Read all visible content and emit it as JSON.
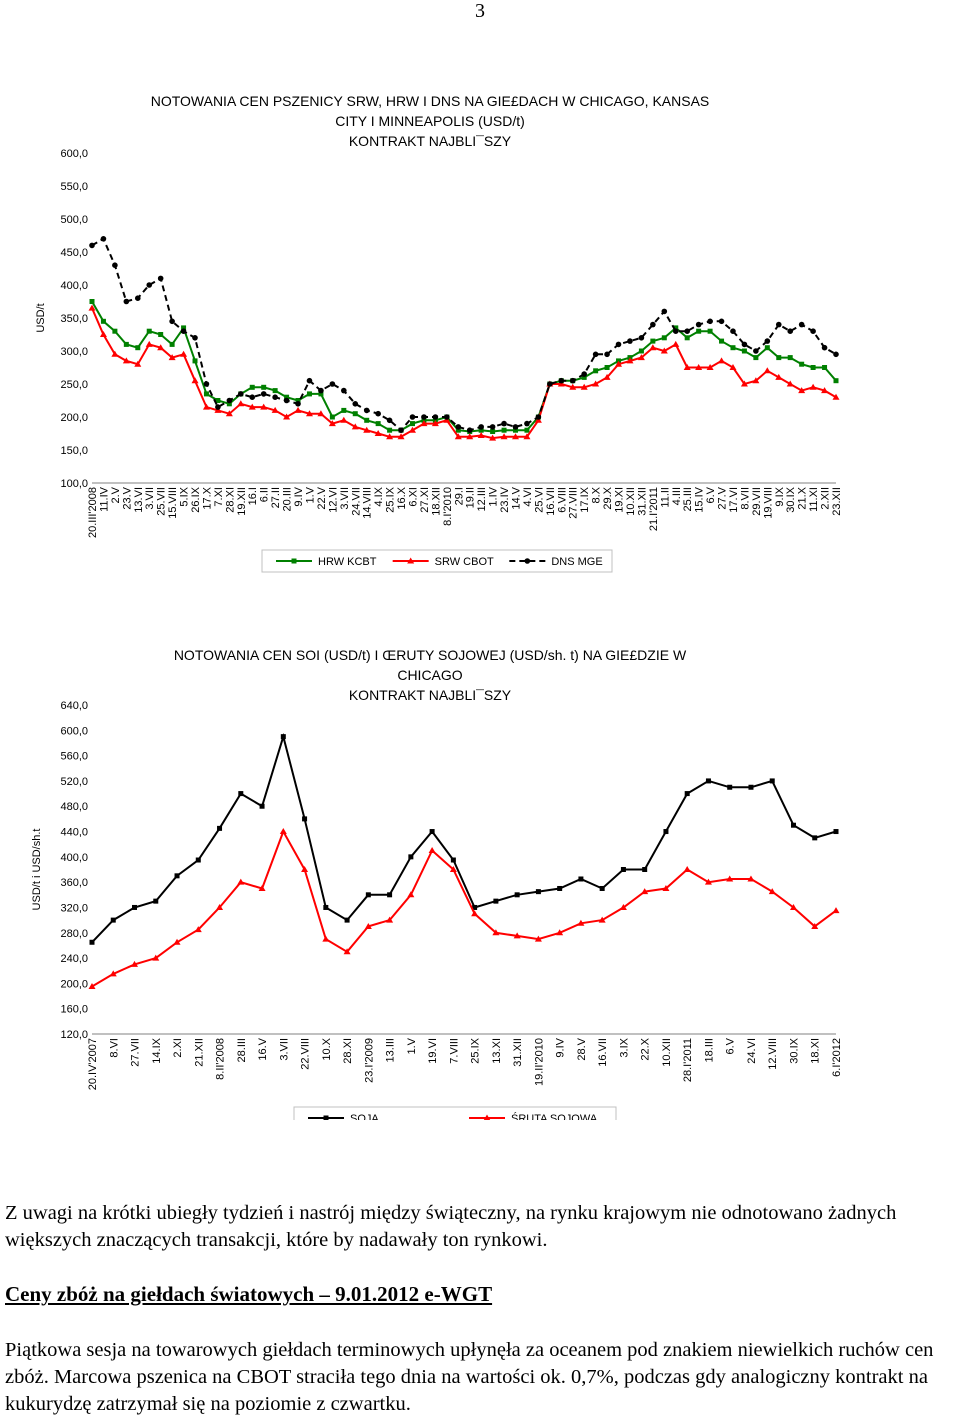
{
  "page": {
    "number": "3"
  },
  "chart_data": [
    {
      "type": "line",
      "title_lines": [
        "NOTOWANIA CEN PSZENICY SRW, HRW I DNS NA GIE£DACH W CHICAGO, KANSAS",
        "CITY I MINNEAPOLIS (USD/t)",
        "KONTRAKT NAJBLI¯SZY"
      ],
      "ylabel": "USD/t",
      "ylim": [
        100,
        600
      ],
      "yticks": [
        "100,0",
        "150,0",
        "200,0",
        "250,0",
        "300,0",
        "350,0",
        "400,0",
        "450,0",
        "500,0",
        "550,0",
        "600,0"
      ],
      "categories": [
        "20.III'2008",
        "11.IV",
        "2.V",
        "23.V",
        "13.VI",
        "3.VII",
        "25.VII",
        "15.VIII",
        "5.IX",
        "26.IX",
        "17.X",
        "7.XI",
        "28.XI",
        "19.XII",
        "16.I",
        "6.II",
        "27.II",
        "20.III",
        "9.IV",
        "1.V",
        "22.V",
        "12.VI",
        "3.VII",
        "24.VII",
        "14.VIII",
        "4.IX",
        "25.IX",
        "16.X",
        "6.XI",
        "27.XI",
        "18.XII",
        "8.I'2010",
        "29.I",
        "19.II",
        "12.III",
        "1.IV",
        "23.IV",
        "14.V",
        "4.VI",
        "25.VI",
        "16.VII",
        "6.VIII",
        "27.VIII",
        "17.IX",
        "8.X",
        "29.X",
        "19.XI",
        "10.XII",
        "31.XII",
        "21.I'2011",
        "11.II",
        "4.III",
        "25.III",
        "15.IV",
        "6.V",
        "27.V",
        "17.VI",
        "8.VII",
        "29.VII",
        "19.VIII",
        "9.IX",
        "30.IX",
        "21.X",
        "11.XI",
        "2.XII",
        "23.XII"
      ],
      "series": [
        {
          "name": "HRW KCBT",
          "color": "#008000",
          "marker": "square",
          "values": [
            375,
            345,
            330,
            310,
            305,
            330,
            325,
            310,
            335,
            285,
            235,
            225,
            220,
            235,
            245,
            245,
            240,
            230,
            225,
            235,
            235,
            200,
            210,
            205,
            195,
            190,
            180,
            180,
            190,
            195,
            195,
            200,
            180,
            178,
            180,
            178,
            180,
            180,
            180,
            200,
            250,
            255,
            255,
            260,
            270,
            275,
            285,
            290,
            300,
            315,
            320,
            335,
            320,
            330,
            330,
            315,
            305,
            300,
            290,
            305,
            290,
            290,
            280,
            275,
            275,
            255
          ]
        },
        {
          "name": "SRW CBOT",
          "color": "#ff0000",
          "marker": "triangle",
          "values": [
            365,
            325,
            295,
            285,
            280,
            310,
            305,
            290,
            295,
            255,
            215,
            210,
            205,
            220,
            215,
            215,
            210,
            200,
            210,
            205,
            205,
            190,
            195,
            185,
            180,
            175,
            170,
            170,
            180,
            190,
            190,
            195,
            170,
            170,
            172,
            168,
            170,
            170,
            170,
            195,
            250,
            250,
            245,
            245,
            250,
            260,
            280,
            285,
            290,
            305,
            300,
            310,
            275,
            275,
            275,
            285,
            275,
            250,
            255,
            270,
            260,
            250,
            240,
            245,
            240,
            230
          ]
        },
        {
          "name": "DNS MGE",
          "color": "#000000",
          "marker": "circle",
          "values": [
            460,
            470,
            430,
            375,
            380,
            400,
            410,
            345,
            330,
            320,
            250,
            215,
            225,
            235,
            230,
            235,
            230,
            225,
            220,
            255,
            240,
            250,
            240,
            220,
            210,
            205,
            195,
            180,
            200,
            200,
            200,
            200,
            185,
            180,
            185,
            185,
            190,
            185,
            190,
            200,
            250,
            255,
            255,
            265,
            295,
            295,
            310,
            315,
            320,
            340,
            360,
            330,
            330,
            340,
            345,
            345,
            330,
            310,
            300,
            315,
            340,
            330,
            340,
            330,
            305,
            295
          ]
        }
      ],
      "legend": "bottom",
      "grid": false
    },
    {
      "type": "line",
      "title_lines": [
        "NOTOWANIA CEN SOI (USD/t) I ŒRUTY SOJOWEJ (USD/sh. t) NA GIE£DZIE W",
        "CHICAGO",
        "KONTRAKT NAJBLI¯SZY"
      ],
      "ylabel": "USD/t i USD/sh.t",
      "ylim": [
        120,
        640
      ],
      "yticks": [
        "120,0",
        "160,0",
        "200,0",
        "240,0",
        "280,0",
        "320,0",
        "360,0",
        "400,0",
        "440,0",
        "480,0",
        "520,0",
        "560,0",
        "600,0",
        "640,0"
      ],
      "categories": [
        "20.IV'2007",
        "8.VI",
        "27.VII",
        "14.IX",
        "2.XI",
        "21.XII",
        "8.II'2008",
        "28.III",
        "16.V",
        "3.VII",
        "22.VIII",
        "10.X",
        "28.XI",
        "23.I'2009",
        "13.III",
        "1.V",
        "19.VI",
        "7.VIII",
        "25.IX",
        "13.XI",
        "31.XII",
        "19.II'2010",
        "9.IV",
        "28.V",
        "16.VII",
        "3.IX",
        "22.X",
        "10.XII",
        "28.I'2011",
        "18.III",
        "6.V",
        "24.VI",
        "12.VIII",
        "30.IX",
        "18.XI",
        "6.I'2012"
      ],
      "series": [
        {
          "name": "SOJA",
          "color": "#000000",
          "marker": "square",
          "values": [
            265,
            300,
            320,
            330,
            370,
            395,
            445,
            500,
            480,
            590,
            460,
            320,
            300,
            340,
            340,
            400,
            440,
            395,
            320,
            330,
            340,
            345,
            350,
            365,
            350,
            380,
            380,
            440,
            500,
            520,
            510,
            510,
            520,
            450,
            430,
            440
          ]
        },
        {
          "name": "ŚRUTA SOJOWA",
          "color": "#ff0000",
          "marker": "triangle",
          "values": [
            195,
            215,
            230,
            240,
            265,
            285,
            320,
            360,
            350,
            440,
            380,
            270,
            250,
            290,
            300,
            340,
            410,
            380,
            310,
            280,
            275,
            270,
            280,
            295,
            300,
            320,
            345,
            350,
            380,
            360,
            365,
            365,
            345,
            320,
            290,
            315
          ]
        }
      ],
      "legend": "bottom",
      "grid": false
    }
  ],
  "text": {
    "p1": "Z uwagi na krótki ubiegły tydzień i nastrój między świąteczny, na rynku krajowym nie odnotowano żadnych większych znaczących transakcji, które by nadawały ton rynkowi.",
    "heading": "Ceny zbóż na giełdach światowych – 9.01.2012 e-WGT ",
    "p2": "Piątkowa sesja na towarowych giełdach terminowych upłynęła za oceanem pod znakiem niewielkich ruchów cen zbóż. Marcowa pszenica na CBOT straciła tego dnia na wartości ok. 0,7%, podczas gdy analogiczny kontrakt na kukurydzę zatrzymał się na poziomie z czwartku."
  }
}
